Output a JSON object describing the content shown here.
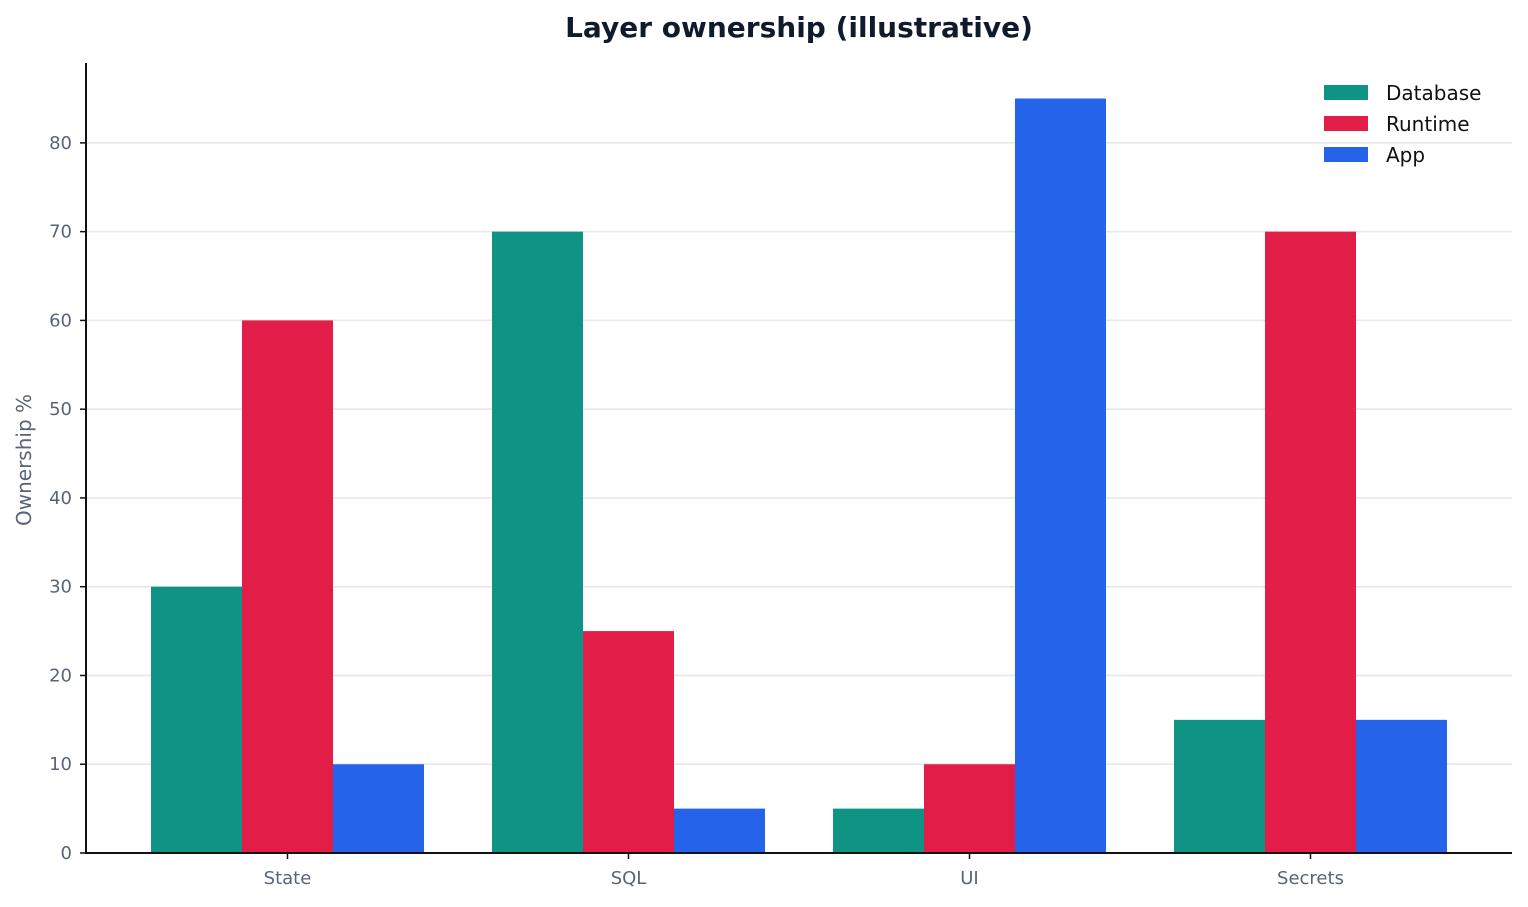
{
  "chart_data": {
    "type": "bar",
    "title": "Layer ownership (illustrative)",
    "xlabel": "",
    "ylabel": "Ownership %",
    "categories": [
      "State",
      "SQL",
      "UI",
      "Secrets"
    ],
    "series": [
      {
        "name": "Database",
        "color": "#0e9384",
        "values": [
          30,
          70,
          5,
          15
        ]
      },
      {
        "name": "Runtime",
        "color": "#e11d48",
        "values": [
          60,
          25,
          10,
          70
        ]
      },
      {
        "name": "App",
        "color": "#2563eb",
        "values": [
          10,
          5,
          85,
          15
        ]
      }
    ],
    "ylim": [
      0,
      89
    ],
    "yticks": [
      0,
      10,
      20,
      30,
      40,
      50,
      60,
      70,
      80
    ],
    "grid": true,
    "legend_position": "top-right"
  }
}
